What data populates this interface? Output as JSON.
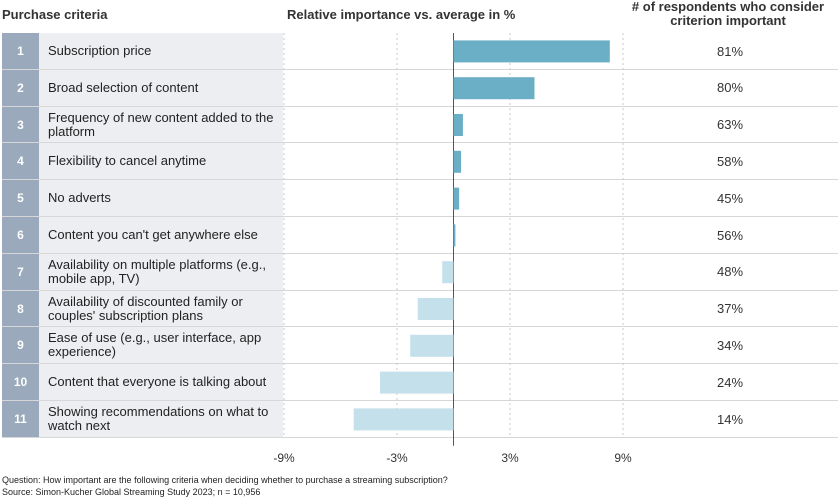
{
  "headers": {
    "criteria": "Purchase criteria",
    "importance": "Relative importance vs. average in %",
    "share_line1": "# of respondents who consider",
    "share_line2": "criterion important"
  },
  "colors": {
    "positive": "#6aafc6",
    "negative": "#c4e0ea",
    "number_box": "#9aa9bb",
    "label_box": "#eceef1"
  },
  "chart_data": {
    "type": "bar",
    "orientation": "horizontal",
    "categories": [
      "Subscription price",
      "Broad selection of content",
      "Frequency of new content added to the platform",
      "Flexibility to cancel anytime",
      "No adverts",
      "Content you can't get anywhere else",
      "Availability on multiple platforms (e.g., mobile app, TV)",
      "Availability of discounted family or couples' subscription plans",
      "Ease of use (e.g., user interface, app experience)",
      "Content that everyone is talking about",
      "Showing recommendations on what to watch next"
    ],
    "ranks": [
      "1",
      "2",
      "3",
      "4",
      "5",
      "6",
      "7",
      "8",
      "9",
      "10",
      "11"
    ],
    "series": [
      {
        "values": [
          8.3,
          4.3,
          0.5,
          0.4,
          0.3,
          0.1,
          -0.6,
          -1.9,
          -2.3,
          -3.9,
          -5.3
        ]
      }
    ],
    "share_important": [
      "81%",
      "80%",
      "63%",
      "58%",
      "45%",
      "56%",
      "48%",
      "37%",
      "34%",
      "24%",
      "14%"
    ],
    "xlabel": "Relative importance vs. average in %",
    "xlim": [
      -9,
      9
    ],
    "xticks": [
      "-9%",
      "-3%",
      "3%",
      "9%"
    ],
    "xtick_values": [
      -9,
      -3,
      3,
      9
    ],
    "grid": "vertical-dashed"
  },
  "footnote": {
    "question": "Question: How important are the following criteria when deciding whether to purchase a streaming subscription?",
    "source": "Source: Simon-Kucher Global Streaming Study 2023; n = 10,956"
  }
}
